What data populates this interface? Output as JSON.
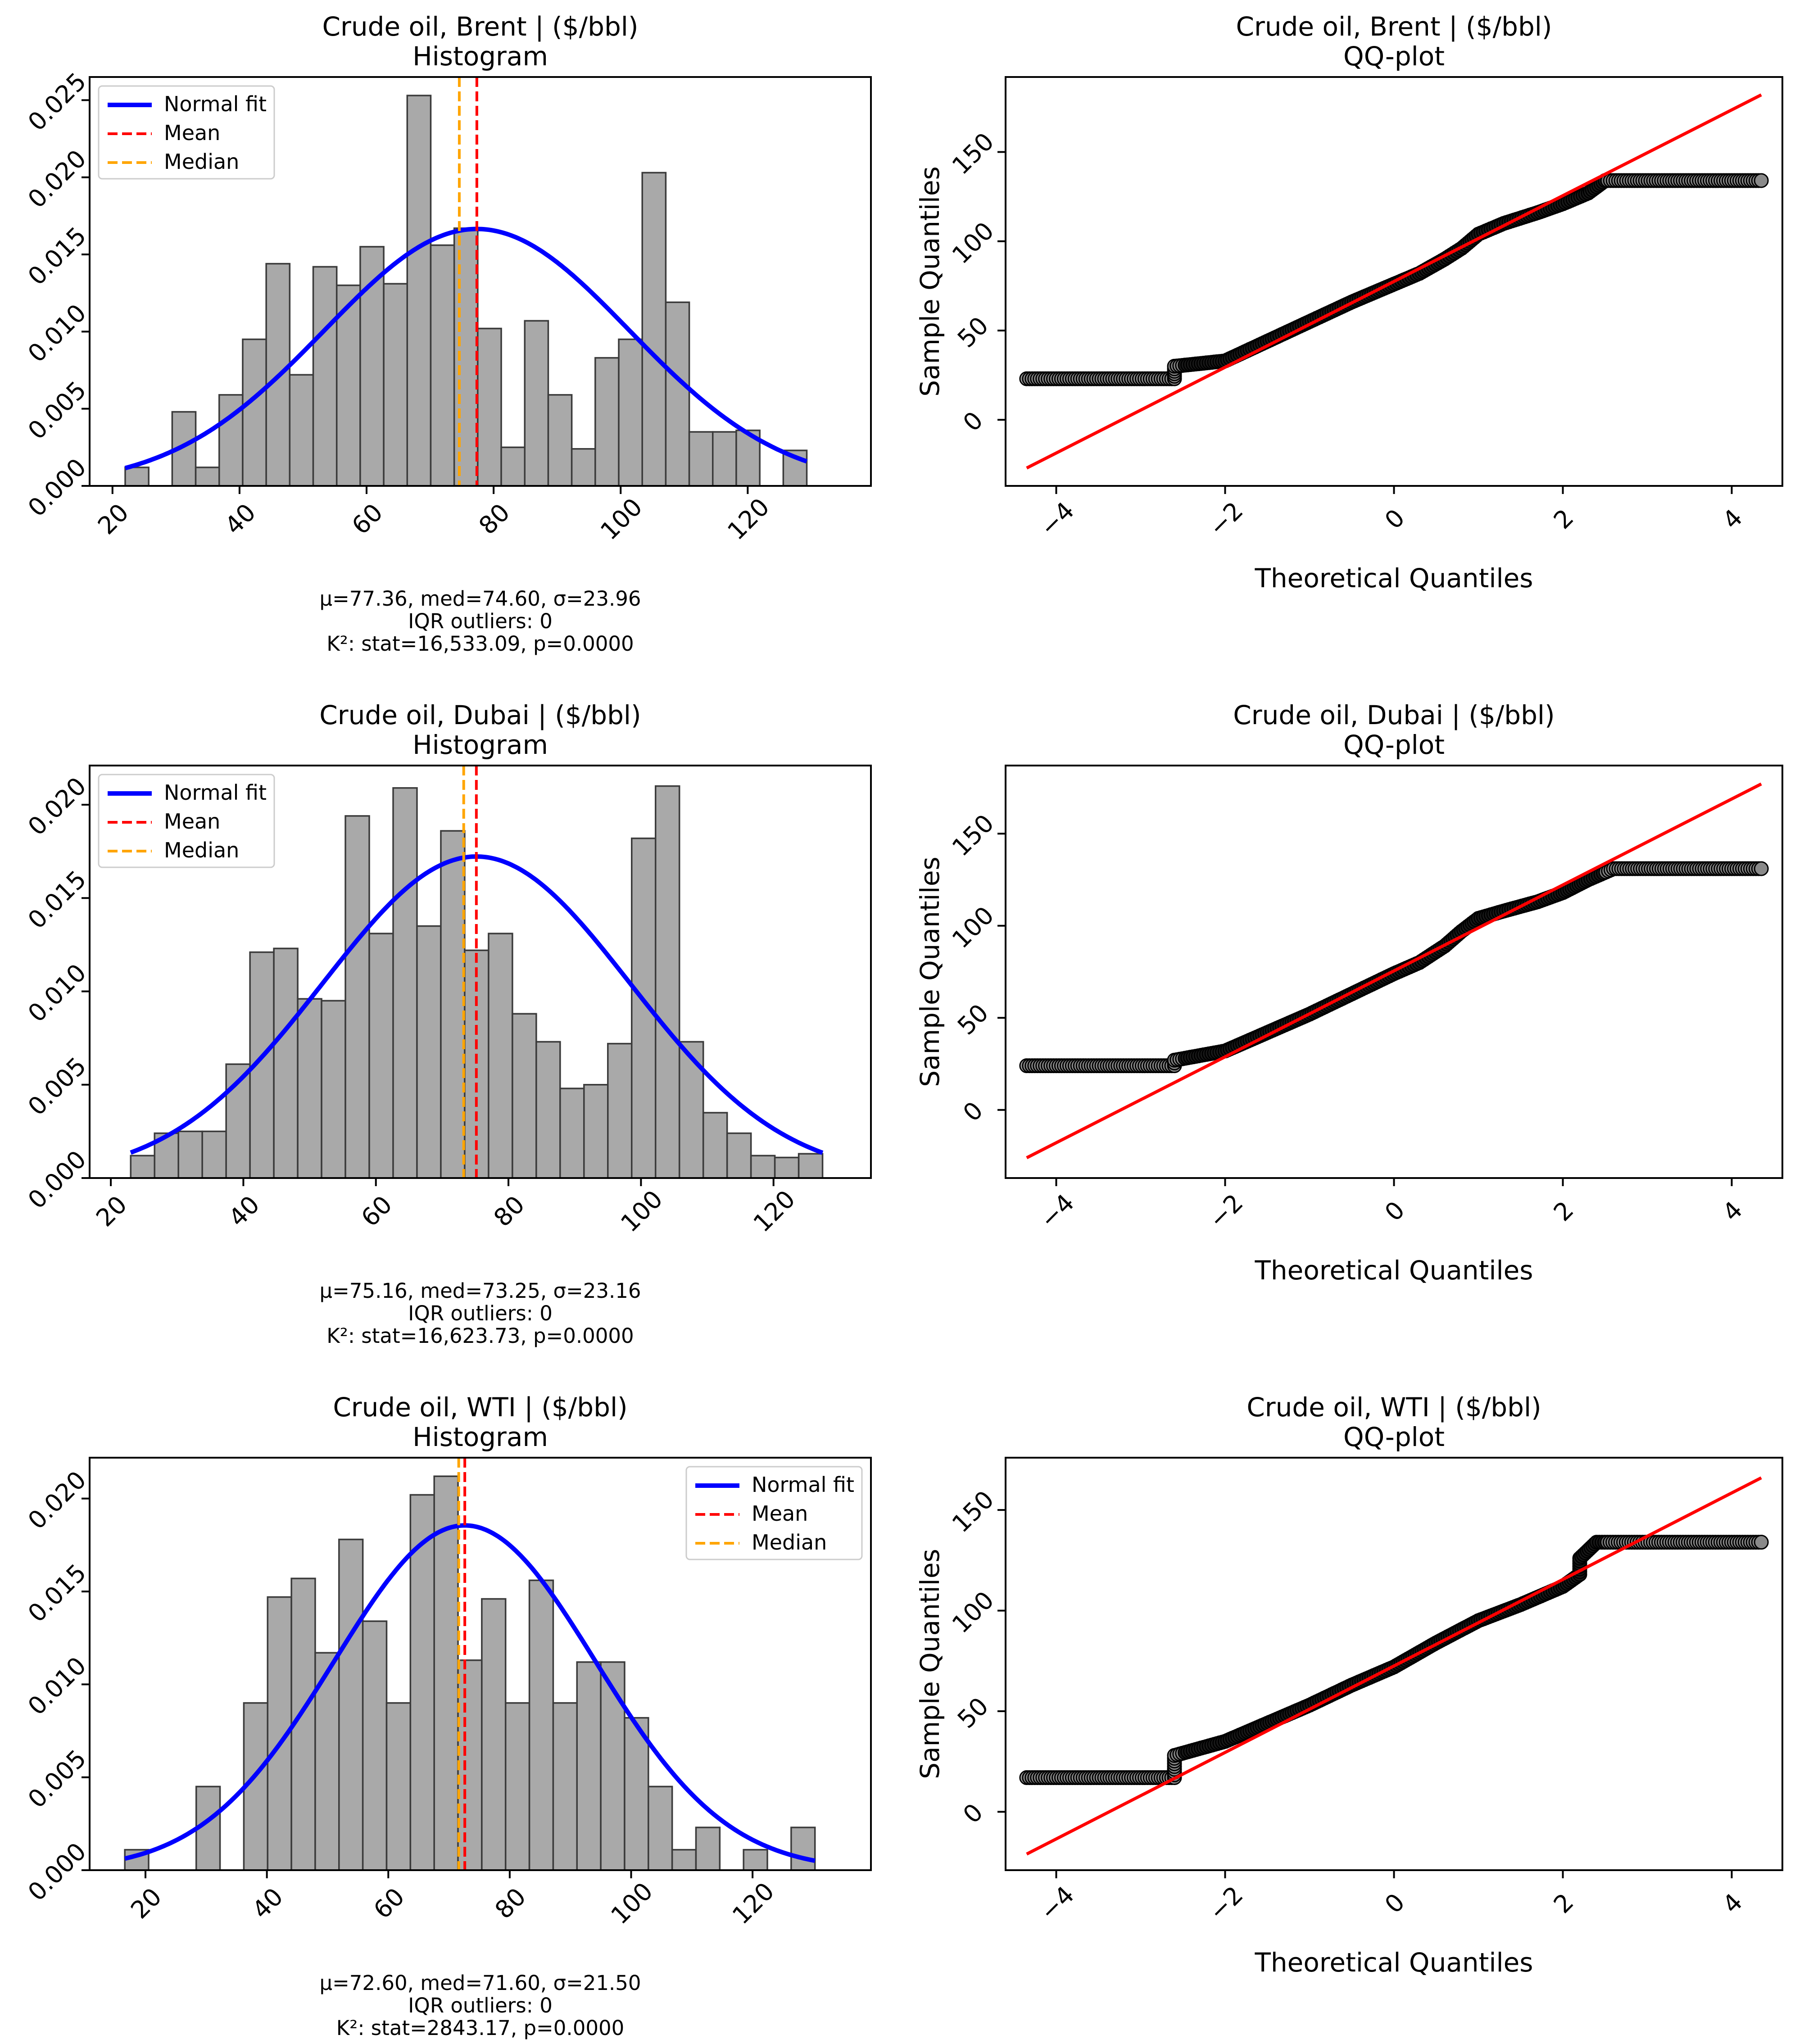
{
  "chart_data": [
    {
      "type": "bar",
      "kind": "histogram",
      "title": "Crude oil, Brent | ($/bbl)",
      "subtitle": "Histogram",
      "xlim": [
        16.4,
        139.4
      ],
      "ylim": [
        0,
        0.0265
      ],
      "xticks": [
        20,
        40,
        60,
        80,
        100,
        120
      ],
      "yticks": [
        0.0,
        0.005,
        0.01,
        0.015,
        0.02,
        0.025
      ],
      "bin_start": 22.0,
      "bin_width": 3.7,
      "values": [
        0.0012,
        0.0,
        0.0048,
        0.0012,
        0.0059,
        0.0095,
        0.0144,
        0.0072,
        0.0142,
        0.013,
        0.0155,
        0.0131,
        0.0253,
        0.0156,
        0.0167,
        0.0102,
        0.0025,
        0.0107,
        0.0059,
        0.0024,
        0.0083,
        0.0095,
        0.0203,
        0.0119,
        0.0035,
        0.0035,
        0.0036,
        0.0,
        0.0023
      ],
      "mean": 77.36,
      "median": 74.6,
      "sigma": 23.96,
      "legend": [
        "Normal fit",
        "Mean",
        "Median"
      ],
      "legend_position": "upper-left",
      "stats_text": [
        "μ=77.36, med=74.60, σ=23.96",
        "IQR outliers: 0",
        "K²: stat=16,533.09, p=0.0000"
      ],
      "series_colors": {
        "bars": "#a9a9a9",
        "fit": "#0000ff",
        "mean": "#ff0000",
        "median": "#ffa500"
      }
    },
    {
      "type": "scatter",
      "kind": "qqplot",
      "title": "Crude oil, Brent | ($/bbl)",
      "subtitle": "QQ-plot",
      "xlabel": "Theoretical Quantiles",
      "ylabel": "Sample Quantiles",
      "xlim": [
        -4.6,
        4.6
      ],
      "ylim": [
        -37,
        192
      ],
      "xticks": [
        -4,
        -2,
        0,
        2,
        4
      ],
      "yticks": [
        0,
        50,
        100,
        150
      ],
      "fit_line": {
        "x": [
          -4.35,
          4.35
        ],
        "y": [
          -27,
          182
        ]
      },
      "points": [
        [
          -4.35,
          23
        ],
        [
          -2.6,
          23
        ],
        [
          -2.6,
          30
        ],
        [
          -2.0,
          33
        ],
        [
          -1.5,
          44
        ],
        [
          -1.0,
          55
        ],
        [
          -0.5,
          66
        ],
        [
          0.0,
          76
        ],
        [
          0.3,
          82
        ],
        [
          0.6,
          90
        ],
        [
          0.8,
          96
        ],
        [
          1.0,
          104
        ],
        [
          1.3,
          110
        ],
        [
          1.7,
          116
        ],
        [
          2.0,
          121
        ],
        [
          2.3,
          127
        ],
        [
          2.5,
          134
        ],
        [
          4.35,
          134
        ]
      ]
    },
    {
      "type": "bar",
      "kind": "histogram",
      "title": "Crude oil, Dubai | ($/bbl)",
      "subtitle": "Histogram",
      "xlim": [
        16.8,
        134.7
      ],
      "ylim": [
        0,
        0.0221
      ],
      "xticks": [
        20,
        40,
        60,
        80,
        100,
        120
      ],
      "yticks": [
        0.0,
        0.005,
        0.01,
        0.015,
        0.02
      ],
      "bin_start": 23.0,
      "bin_width": 3.6,
      "values": [
        0.0012,
        0.0024,
        0.0025,
        0.0025,
        0.0061,
        0.0121,
        0.0123,
        0.0096,
        0.0095,
        0.0194,
        0.0131,
        0.0209,
        0.0135,
        0.0186,
        0.0122,
        0.0131,
        0.0088,
        0.0073,
        0.0048,
        0.005,
        0.0072,
        0.0182,
        0.021,
        0.0073,
        0.0035,
        0.0024,
        0.0012,
        0.0011,
        0.0013
      ],
      "mean": 75.16,
      "median": 73.25,
      "sigma": 23.16,
      "legend": [
        "Normal fit",
        "Mean",
        "Median"
      ],
      "legend_position": "upper-left",
      "stats_text": [
        "μ=75.16, med=73.25, σ=23.16",
        "IQR outliers: 0",
        "K²: stat=16,623.73, p=0.0000"
      ],
      "series_colors": {
        "bars": "#a9a9a9",
        "fit": "#0000ff",
        "mean": "#ff0000",
        "median": "#ffa500"
      }
    },
    {
      "type": "scatter",
      "kind": "qqplot",
      "title": "Crude oil, Dubai | ($/bbl)",
      "subtitle": "QQ-plot",
      "xlabel": "Theoretical Quantiles",
      "ylabel": "Sample Quantiles",
      "xlim": [
        -4.6,
        4.6
      ],
      "ylim": [
        -37,
        187
      ],
      "xticks": [
        -4,
        -2,
        0,
        2,
        4
      ],
      "yticks": [
        0,
        50,
        100,
        150
      ],
      "fit_line": {
        "x": [
          -4.35,
          4.35
        ],
        "y": [
          -26,
          177
        ]
      },
      "points": [
        [
          -4.35,
          24
        ],
        [
          -2.6,
          24
        ],
        [
          -2.6,
          27
        ],
        [
          -2.0,
          32
        ],
        [
          -1.5,
          42
        ],
        [
          -1.0,
          52
        ],
        [
          -0.5,
          63
        ],
        [
          0.0,
          74
        ],
        [
          0.3,
          80
        ],
        [
          0.6,
          89
        ],
        [
          0.8,
          97
        ],
        [
          1.0,
          104
        ],
        [
          1.3,
          108
        ],
        [
          1.7,
          113
        ],
        [
          2.0,
          118
        ],
        [
          2.3,
          125
        ],
        [
          2.6,
          131
        ],
        [
          4.35,
          131
        ]
      ]
    },
    {
      "type": "bar",
      "kind": "histogram",
      "title": "Crude oil, WTI | ($/bbl)",
      "subtitle": "Histogram",
      "xlim": [
        10.8,
        139.5
      ],
      "ylim": [
        0,
        0.0222
      ],
      "xticks": [
        20,
        40,
        60,
        80,
        100,
        120
      ],
      "yticks": [
        0.0,
        0.005,
        0.01,
        0.015,
        0.02
      ],
      "bin_start": 16.6,
      "bin_width": 3.92,
      "values": [
        0.0011,
        0.0,
        0.0,
        0.0045,
        0.0,
        0.009,
        0.0147,
        0.0157,
        0.0117,
        0.0178,
        0.0134,
        0.009,
        0.0202,
        0.0212,
        0.0113,
        0.0146,
        0.009,
        0.0156,
        0.009,
        0.0112,
        0.0112,
        0.0082,
        0.0045,
        0.0011,
        0.0023,
        0.0,
        0.0011,
        0.0,
        0.0023
      ],
      "mean": 72.6,
      "median": 71.6,
      "sigma": 21.5,
      "legend": [
        "Normal fit",
        "Mean",
        "Median"
      ],
      "legend_position": "upper-right",
      "stats_text": [
        "μ=72.60, med=71.60, σ=21.50",
        "IQR outliers: 0",
        "K²: stat=2843.17, p=0.0000"
      ],
      "series_colors": {
        "bars": "#a9a9a9",
        "fit": "#0000ff",
        "mean": "#ff0000",
        "median": "#ffa500"
      }
    },
    {
      "type": "scatter",
      "kind": "qqplot",
      "title": "Crude oil, WTI | ($/bbl)",
      "subtitle": "QQ-plot",
      "xlabel": "Theoretical Quantiles",
      "ylabel": "Sample Quantiles",
      "xlim": [
        -4.6,
        4.6
      ],
      "ylim": [
        -29,
        176
      ],
      "xticks": [
        -4,
        -2,
        0,
        2,
        4
      ],
      "yticks": [
        0,
        50,
        100,
        150
      ],
      "fit_line": {
        "x": [
          -4.35,
          4.35
        ],
        "y": [
          -21,
          166
        ]
      },
      "points": [
        [
          -4.35,
          17
        ],
        [
          -2.6,
          17
        ],
        [
          -2.6,
          28
        ],
        [
          -2.0,
          35
        ],
        [
          -1.5,
          44
        ],
        [
          -1.0,
          53
        ],
        [
          -0.5,
          63
        ],
        [
          0.0,
          72
        ],
        [
          0.5,
          84
        ],
        [
          1.0,
          95
        ],
        [
          1.5,
          103
        ],
        [
          2.0,
          112
        ],
        [
          2.2,
          118
        ],
        [
          2.2,
          126
        ],
        [
          2.4,
          134
        ],
        [
          4.35,
          134
        ]
      ]
    }
  ]
}
